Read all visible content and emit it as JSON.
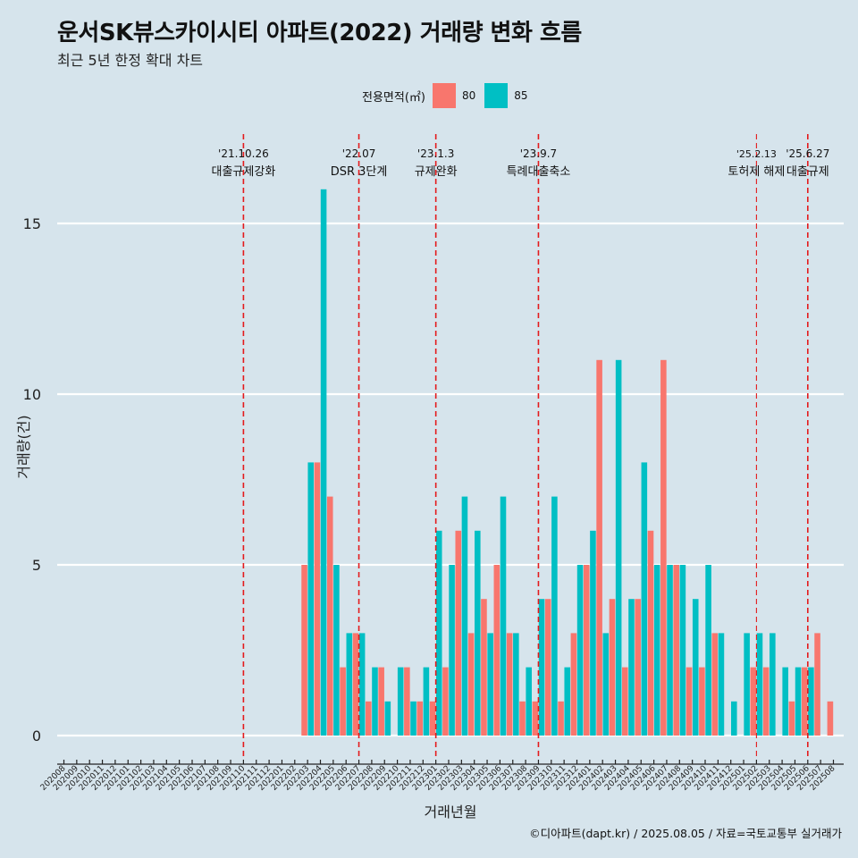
{
  "title": "운서SK뷰스카이시티 아파트(2022) 거래량 변화 흐름",
  "subtitle": "최근 5년 한정 확대 차트",
  "caption": "©디아파트(dapt.kr) / 2025.08.05 / 자료=국토교통부 실거래가",
  "legend": {
    "title": "전용면적(㎡)",
    "items": [
      {
        "label": "80",
        "color": "#f8766d"
      },
      {
        "label": "85",
        "color": "#00bfc4"
      }
    ]
  },
  "chart_data": {
    "type": "bar",
    "xlabel": "거래년월",
    "ylabel": "거래량(건)",
    "ylim": [
      0,
      17
    ],
    "yticks": [
      0,
      5,
      10,
      15
    ],
    "categories": [
      "202008",
      "202009",
      "202010",
      "202011",
      "202012",
      "202101",
      "202102",
      "202103",
      "202104",
      "202105",
      "202106",
      "202107",
      "202108",
      "202109",
      "202110",
      "202111",
      "202112",
      "202201",
      "202202",
      "202203",
      "202204",
      "202205",
      "202206",
      "202207",
      "202208",
      "202209",
      "202210",
      "202211",
      "202212",
      "202301",
      "202302",
      "202303",
      "202304",
      "202305",
      "202306",
      "202307",
      "202308",
      "202309",
      "202310",
      "202311",
      "202312",
      "202401",
      "202402",
      "202403",
      "202404",
      "202405",
      "202406",
      "202407",
      "202408",
      "202409",
      "202410",
      "202411",
      "202412",
      "202501",
      "202502",
      "202503",
      "202504",
      "202505",
      "202506",
      "202507",
      "202508"
    ],
    "series": [
      {
        "name": "80",
        "color": "#f8766d",
        "values": [
          0,
          0,
          0,
          0,
          0,
          0,
          0,
          0,
          0,
          0,
          0,
          0,
          0,
          0,
          0,
          0,
          0,
          0,
          0,
          5,
          8,
          7,
          2,
          3,
          1,
          2,
          0,
          2,
          1,
          1,
          2,
          6,
          3,
          4,
          5,
          3,
          1,
          1,
          4,
          1,
          3,
          5,
          11,
          4,
          2,
          4,
          6,
          11,
          5,
          2,
          2,
          3,
          0,
          0,
          2,
          2,
          0,
          1,
          2,
          3,
          1
        ]
      },
      {
        "name": "85",
        "color": "#00bfc4",
        "values": [
          0,
          0,
          0,
          0,
          0,
          0,
          0,
          0,
          0,
          0,
          0,
          0,
          0,
          0,
          0,
          0,
          0,
          0,
          0,
          8,
          16,
          5,
          3,
          3,
          2,
          1,
          2,
          1,
          2,
          6,
          5,
          7,
          6,
          3,
          7,
          3,
          2,
          4,
          7,
          2,
          5,
          6,
          3,
          11,
          4,
          8,
          5,
          5,
          5,
          4,
          5,
          3,
          1,
          3,
          3,
          3,
          2,
          2,
          2,
          0,
          0
        ]
      }
    ],
    "annotations": [
      {
        "date": "'21.10.26",
        "text": "대출규제강화",
        "at": 14.0
      },
      {
        "date": "'22.07",
        "text": "DSR 3단계",
        "at": 23.0
      },
      {
        "date": "'23.1.3",
        "text": "규제완화",
        "at": 29.0
      },
      {
        "date": "'23.9.7",
        "text": "특례대출축소",
        "at": 37.0
      },
      {
        "date": "'25.2.13",
        "text": "토허제 해제",
        "at": 54.0
      },
      {
        "date": "'25.6.27",
        "text": "대출규제",
        "at": 58.0
      }
    ]
  }
}
